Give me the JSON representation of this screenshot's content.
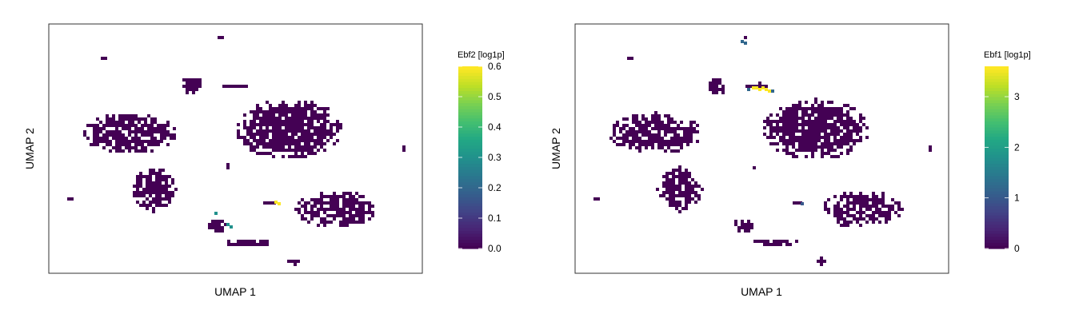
{
  "chart_data": [
    {
      "type": "heatmap",
      "subtype": "hexbin-umap",
      "xlabel": "UMAP 1",
      "ylabel": "UMAP 2",
      "colorbar": {
        "title": "Ebf2 [log1p]",
        "min": 0.0,
        "max": 0.6,
        "ticks": [
          0.0,
          0.1,
          0.2,
          0.3,
          0.4,
          0.5,
          0.6
        ],
        "tick_labels": [
          "0.0",
          "0.1",
          "0.2",
          "0.3",
          "0.4",
          "0.5",
          "0.6"
        ],
        "colormap": "viridis"
      },
      "base_value": 0.0,
      "highlights": [
        {
          "cluster": "right-mid-small",
          "value": 0.6
        },
        {
          "cluster": "lower-left-arc",
          "value": 0.3
        }
      ]
    },
    {
      "type": "heatmap",
      "subtype": "hexbin-umap",
      "xlabel": "UMAP 1",
      "ylabel": "UMAP 2",
      "colorbar": {
        "title": "Ebf1 [log1p]",
        "min": 0,
        "max": 3.6,
        "ticks": [
          0,
          1,
          2,
          3
        ],
        "tick_labels": [
          "0",
          "1",
          "2",
          "3"
        ],
        "colormap": "viridis"
      },
      "base_value": 0.0,
      "highlights": [
        {
          "cluster": "upper-streak",
          "value": 3.6
        },
        {
          "cluster": "top-tiny",
          "value": 1.2
        },
        {
          "cluster": "right-mid-small",
          "value": 1.0
        }
      ]
    }
  ],
  "colors": {
    "viridis_low": "#440154",
    "viridis_high": "#fde725",
    "frame": "#333333"
  }
}
